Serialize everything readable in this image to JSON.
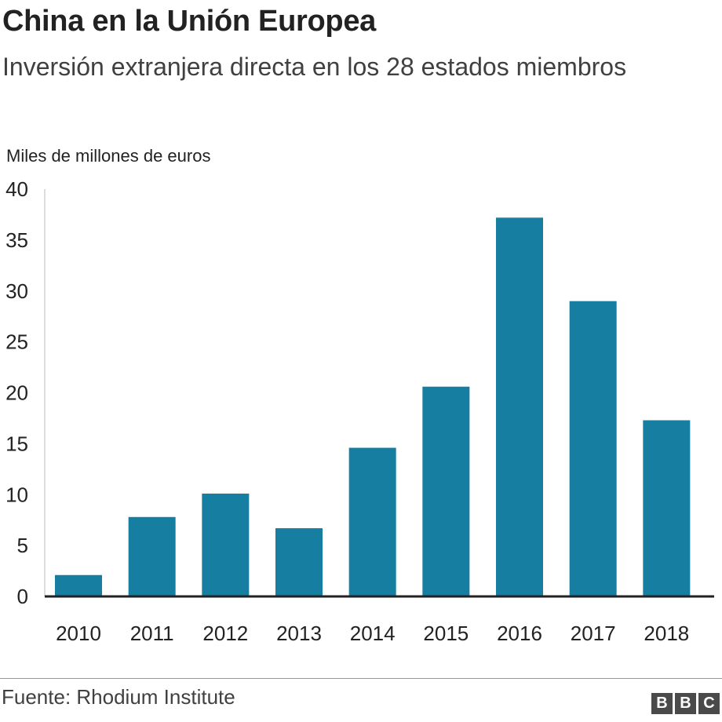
{
  "header": {
    "title": "China en la Unión Europea",
    "subtitle": "Inversión extranjera directa en los 28 estados miembros"
  },
  "footer": {
    "source": "Fuente: Rhodium Institute",
    "logo": [
      "B",
      "B",
      "C"
    ]
  },
  "colors": {
    "bar": "#167ea1",
    "axis": "#222222",
    "grid": "#dddddd"
  },
  "chart_data": {
    "type": "bar",
    "title": "China en la Unión Europea",
    "subtitle": "Inversión extranjera directa en los 28 estados miembros",
    "ylabel": "Miles de millones de euros",
    "xlabel": "",
    "categories": [
      "2010",
      "2011",
      "2012",
      "2013",
      "2014",
      "2015",
      "2016",
      "2017",
      "2018"
    ],
    "values": [
      2.1,
      7.8,
      10.1,
      6.7,
      14.6,
      20.6,
      37.2,
      29.0,
      17.3
    ],
    "ylim": [
      0,
      40
    ],
    "yticks": [
      0,
      5,
      10,
      15,
      20,
      25,
      30,
      35,
      40
    ],
    "grid": "none",
    "legend": "none"
  }
}
